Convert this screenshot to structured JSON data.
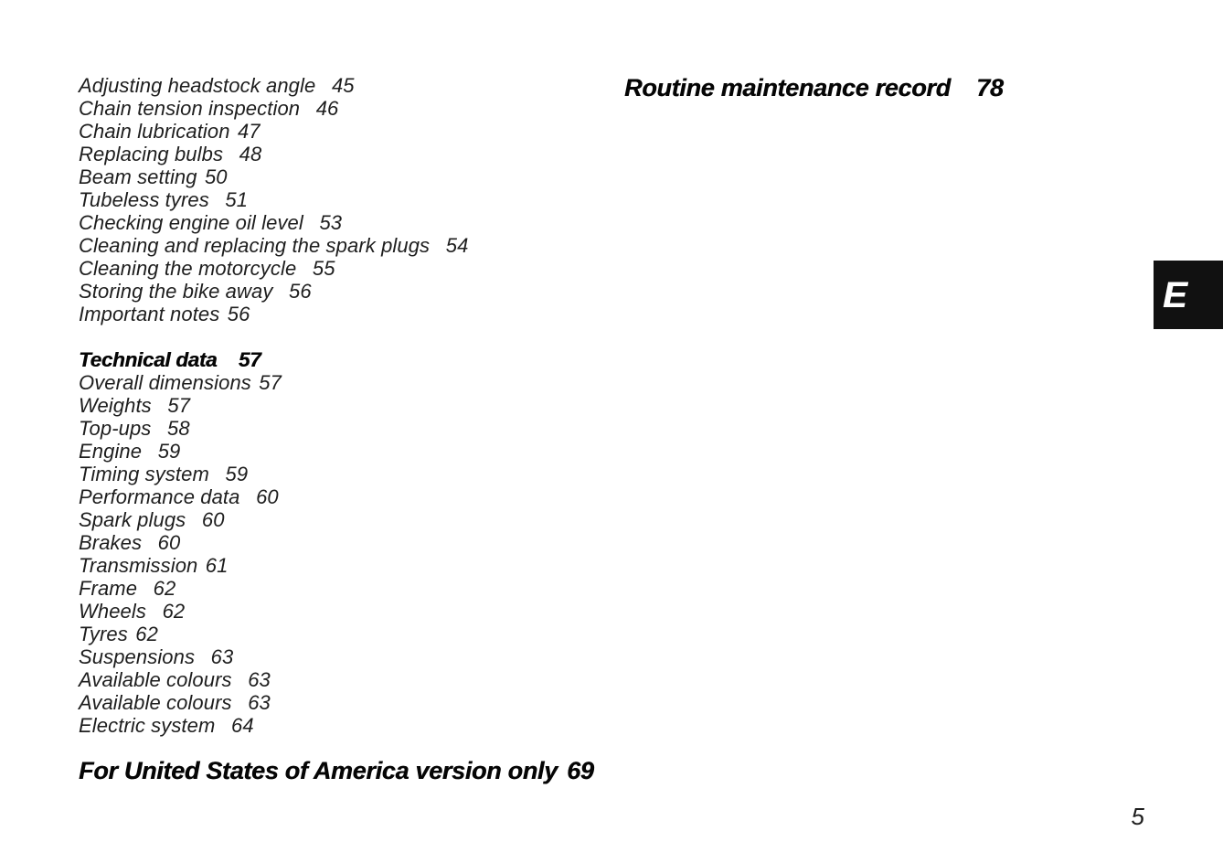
{
  "page_number": "5",
  "edge_tab": {
    "label": "E",
    "background": "#111111",
    "color": "#ffffff"
  },
  "colors": {
    "page_background": "#ffffff",
    "body_text": "#1e1e1e",
    "heading_text": "#050505"
  },
  "toc": {
    "left_column": {
      "sections": [
        {
          "heading": null,
          "items": [
            {
              "label": "Adjusting headstock angle",
              "page": "45",
              "gap": "wide"
            },
            {
              "label": "Chain tension inspection",
              "page": "46",
              "gap": "wide"
            },
            {
              "label": "Chain lubrication",
              "page": "47",
              "gap": "narrow"
            },
            {
              "label": "Replacing bulbs",
              "page": "48",
              "gap": "wide"
            },
            {
              "label": "Beam setting",
              "page": "50",
              "gap": "narrow"
            },
            {
              "label": "Tubeless tyres",
              "page": "51",
              "gap": "wide"
            },
            {
              "label": "Checking engine oil level",
              "page": "53",
              "gap": "wide"
            },
            {
              "label": "Cleaning and replacing the spark plugs",
              "page": "54",
              "gap": "wide"
            },
            {
              "label": "Cleaning the motorcycle",
              "page": "55",
              "gap": "wide"
            },
            {
              "label": "Storing the bike away",
              "page": "56",
              "gap": "wide"
            },
            {
              "label": "Important notes",
              "page": "56",
              "gap": "narrow"
            }
          ]
        },
        {
          "heading": {
            "label": "Technical data",
            "page": "57",
            "gap": "xwide",
            "size": "mid"
          },
          "items": [
            {
              "label": "Overall dimensions",
              "page": "57",
              "gap": "narrow"
            },
            {
              "label": "Weights",
              "page": "57",
              "gap": "wide"
            },
            {
              "label": "Top-ups",
              "page": "58",
              "gap": "wide"
            },
            {
              "label": "Engine",
              "page": "59",
              "gap": "wide"
            },
            {
              "label": "Timing system",
              "page": "59",
              "gap": "wide"
            },
            {
              "label": "Performance data",
              "page": "60",
              "gap": "wide"
            },
            {
              "label": "Spark plugs",
              "page": "60",
              "gap": "wide"
            },
            {
              "label": "Brakes",
              "page": "60",
              "gap": "wide"
            },
            {
              "label": "Transmission",
              "page": "61",
              "gap": "narrow"
            },
            {
              "label": "Frame",
              "page": "62",
              "gap": "wide"
            },
            {
              "label": "Wheels",
              "page": "62",
              "gap": "wide"
            },
            {
              "label": "Tyres",
              "page": "62",
              "gap": "narrow"
            },
            {
              "label": "Suspensions",
              "page": "63",
              "gap": "wide"
            },
            {
              "label": "Available colours",
              "page": "63",
              "gap": "wide"
            },
            {
              "label": "Available colours",
              "page": "63",
              "gap": "wide"
            },
            {
              "label": "Electric system",
              "page": "64",
              "gap": "wide"
            }
          ]
        },
        {
          "heading": {
            "label": "For United States of America version only",
            "page": "69",
            "gap": "narrow",
            "size": "big"
          },
          "items": []
        }
      ]
    },
    "right_column": {
      "heading": {
        "label": "Routine maintenance record",
        "page": "78",
        "gap": "xwide",
        "size": "big"
      }
    }
  }
}
